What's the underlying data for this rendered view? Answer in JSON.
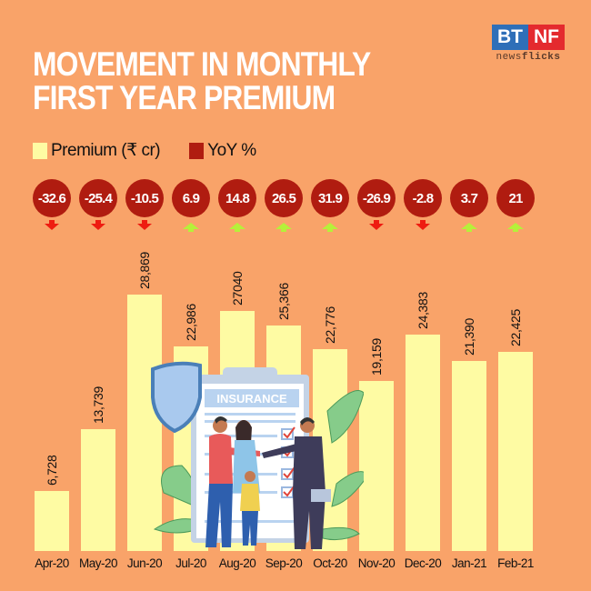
{
  "header": {
    "title_line1": "MOVEMENT IN MONTHLY",
    "title_line2": "FIRST YEAR PREMIUM"
  },
  "logo": {
    "left": "BT",
    "right": "NF",
    "sub_a": "news",
    "sub_b": "flicks"
  },
  "legend": {
    "premium_label": "Premium (₹ cr)",
    "yoy_label": "YoY %",
    "premium_color": "#fefba3",
    "yoy_color": "#b01c10"
  },
  "illustration": {
    "clipboard_text": "INSURANCE"
  },
  "colors": {
    "background": "#f9a369",
    "bar": "#fefba3",
    "circle": "#b01c10",
    "arrow_down": "#ee1c11",
    "arrow_up": "#b6f03a"
  },
  "chart_data": {
    "type": "bar",
    "title": "Movement in Monthly First Year Premium",
    "xlabel": "",
    "ylabel": "Premium (₹ cr)",
    "categories": [
      "Apr-20",
      "May-20",
      "Jun-20",
      "Jul-20",
      "Aug-20",
      "Sep-20",
      "Oct-20",
      "Nov-20",
      "Dec-20",
      "Jan-21",
      "Feb-21"
    ],
    "series": [
      {
        "name": "Premium (₹ cr)",
        "values": [
          6728,
          13739,
          28869,
          22986,
          27040,
          25366,
          22776,
          19159,
          24383,
          21390,
          22425
        ],
        "labels": [
          "6,728",
          "13,739",
          "28,869",
          "22,986",
          "27040",
          "25,366",
          "22,776",
          "19,159",
          "24,383",
          "21,390",
          "22,425"
        ]
      },
      {
        "name": "YoY %",
        "values": [
          -32.6,
          -25.4,
          -10.5,
          6.9,
          14.8,
          26.5,
          31.9,
          -26.9,
          -2.8,
          3.7,
          21
        ],
        "labels": [
          "-32.6",
          "-25.4",
          "-10.5",
          "6.9",
          "14.8",
          "26.5",
          "31.9",
          "-26.9",
          "-2.8",
          "3.7",
          "21"
        ]
      }
    ],
    "legend_position": "top-left",
    "grid": false,
    "ylim": [
      0,
      30000
    ]
  }
}
